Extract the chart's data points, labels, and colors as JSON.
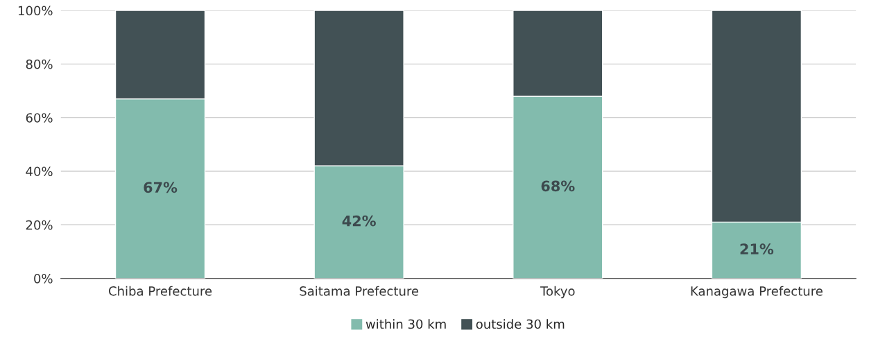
{
  "chart_data": {
    "type": "bar",
    "stacked": true,
    "categories": [
      "Chiba Prefecture",
      "Saitama Prefecture",
      "Tokyo",
      "Kanagawa Prefecture"
    ],
    "series": [
      {
        "name": "within 30 km",
        "color": "#82bbad",
        "values": [
          67,
          42,
          68,
          21
        ],
        "value_labels": [
          "67%",
          "42%",
          "68%",
          "21%"
        ]
      },
      {
        "name": "outside 30 km",
        "color": "#425155",
        "values": [
          33,
          58,
          32,
          79
        ]
      }
    ],
    "ylim": [
      0,
      100
    ],
    "yticks": [
      {
        "value": 0,
        "label": "0%"
      },
      {
        "value": 20,
        "label": "20%"
      },
      {
        "value": 40,
        "label": "40%"
      },
      {
        "value": 60,
        "label": "60%"
      },
      {
        "value": 80,
        "label": "80%"
      },
      {
        "value": 100,
        "label": "100%"
      }
    ],
    "grid": "y",
    "legend": "bottom"
  }
}
